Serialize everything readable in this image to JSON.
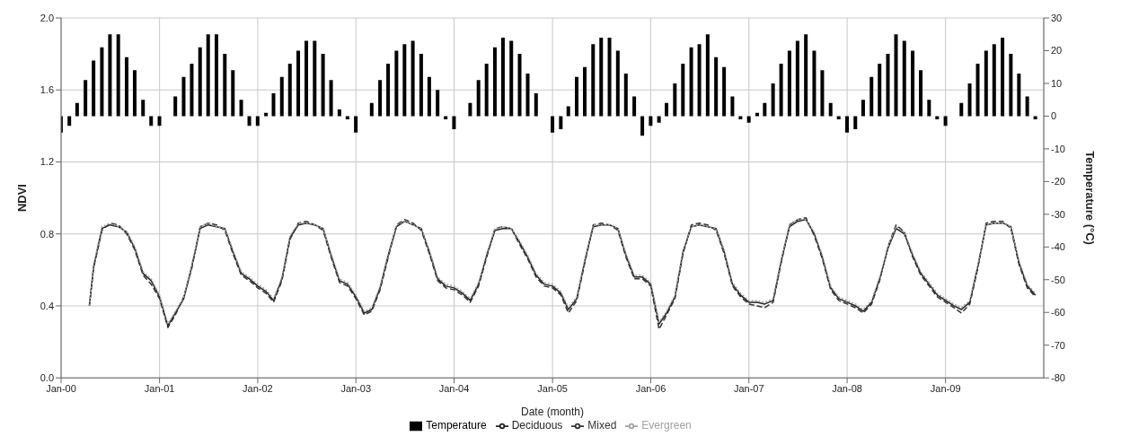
{
  "chart_data": {
    "type": "line",
    "xlabel": "Date (month)",
    "ylabel": "NDVI",
    "y2label": "Temperature (°C)",
    "xlim": [
      "2000-01",
      "2010-01"
    ],
    "xticks": [
      {
        "value": "2000-01",
        "label": "Jan-00"
      },
      {
        "value": "2001-01",
        "label": "Jan-01"
      },
      {
        "value": "2002-01",
        "label": "Jan-02"
      },
      {
        "value": "2003-01",
        "label": "Jan-03"
      },
      {
        "value": "2004-01",
        "label": "Jan-04"
      },
      {
        "value": "2005-01",
        "label": "Jan-05"
      },
      {
        "value": "2006-01",
        "label": "Jan-06"
      },
      {
        "value": "2007-01",
        "label": "Jan-07"
      },
      {
        "value": "2008-01",
        "label": "Jan-08"
      },
      {
        "value": "2009-01",
        "label": "Jan-09"
      }
    ],
    "ylim": [
      0,
      2
    ],
    "yticks": [
      {
        "value": 0,
        "label": "0.0"
      },
      0.4,
      0.8,
      1.2,
      1.6,
      {
        "value": 2,
        "label": "2.0"
      }
    ],
    "y2lim": [
      -80,
      30
    ],
    "y2ticks": [
      -80,
      -70,
      -60,
      -50,
      -40,
      -30,
      -20,
      -10,
      0,
      10,
      20,
      30
    ],
    "grid": true,
    "legend": "bottom",
    "marker": "none",
    "series": [
      {
        "name": "Temperature",
        "type": "bar",
        "axis": "y2",
        "color": "#000000",
        "x": [
          "2000-01",
          "2000-02",
          "2000-03",
          "2000-04",
          "2000-05",
          "2000-06",
          "2000-07",
          "2000-08",
          "2000-09",
          "2000-10",
          "2000-11",
          "2000-12",
          "2001-01",
          "2001-02",
          "2001-03",
          "2001-04",
          "2001-05",
          "2001-06",
          "2001-07",
          "2001-08",
          "2001-09",
          "2001-10",
          "2001-11",
          "2001-12",
          "2002-01",
          "2002-02",
          "2002-03",
          "2002-04",
          "2002-05",
          "2002-06",
          "2002-07",
          "2002-08",
          "2002-09",
          "2002-10",
          "2002-11",
          "2002-12",
          "2003-01",
          "2003-02",
          "2003-03",
          "2003-04",
          "2003-05",
          "2003-06",
          "2003-07",
          "2003-08",
          "2003-09",
          "2003-10",
          "2003-11",
          "2003-12",
          "2004-01",
          "2004-02",
          "2004-03",
          "2004-04",
          "2004-05",
          "2004-06",
          "2004-07",
          "2004-08",
          "2004-09",
          "2004-10",
          "2004-11",
          "2004-12",
          "2005-01",
          "2005-02",
          "2005-03",
          "2005-04",
          "2005-05",
          "2005-06",
          "2005-07",
          "2005-08",
          "2005-09",
          "2005-10",
          "2005-11",
          "2005-12",
          "2006-01",
          "2006-02",
          "2006-03",
          "2006-04",
          "2006-05",
          "2006-06",
          "2006-07",
          "2006-08",
          "2006-09",
          "2006-10",
          "2006-11",
          "2006-12",
          "2007-01",
          "2007-02",
          "2007-03",
          "2007-04",
          "2007-05",
          "2007-06",
          "2007-07",
          "2007-08",
          "2007-09",
          "2007-10",
          "2007-11",
          "2007-12",
          "2008-01",
          "2008-02",
          "2008-03",
          "2008-04",
          "2008-05",
          "2008-06",
          "2008-07",
          "2008-08",
          "2008-09",
          "2008-10",
          "2008-11",
          "2008-12",
          "2009-01",
          "2009-02",
          "2009-03",
          "2009-04",
          "2009-05",
          "2009-06",
          "2009-07",
          "2009-08",
          "2009-09",
          "2009-10",
          "2009-11",
          "2009-12"
        ],
        "values": [
          -5,
          -3,
          4,
          11,
          17,
          21,
          25,
          25,
          18,
          14,
          5,
          -3,
          -3,
          0,
          6,
          12,
          16,
          21,
          25,
          25,
          19,
          14,
          5,
          -3,
          -3,
          1,
          7,
          12,
          16,
          20,
          23,
          23,
          19,
          11,
          2,
          -1,
          -5,
          0,
          4,
          11,
          16,
          20,
          22,
          23,
          19,
          12,
          8,
          -1,
          -4,
          0,
          4,
          11,
          16,
          21,
          24,
          23,
          19,
          13,
          7,
          0,
          -5,
          -4,
          3,
          12,
          15,
          22,
          24,
          24,
          20,
          13,
          6,
          -6,
          -3,
          -2,
          4,
          10,
          16,
          21,
          22,
          25,
          18,
          15,
          6,
          -1,
          -2,
          1,
          4,
          10,
          16,
          20,
          23,
          25,
          20,
          14,
          4,
          -1,
          -5,
          -4,
          5,
          12,
          16,
          19,
          25,
          23,
          20,
          14,
          5,
          -1,
          -3,
          0,
          4,
          10,
          16,
          20,
          22,
          24,
          19,
          13,
          6,
          -1
        ]
      },
      {
        "name": "Deciduous",
        "color": "#222222",
        "line_style": "solid",
        "x": [
          "2000-04-15",
          "2000-05",
          "2000-06",
          "2000-07",
          "2000-08",
          "2000-09",
          "2000-10",
          "2000-11",
          "2000-12",
          "2001-01",
          "2001-02",
          "2001-03",
          "2001-04",
          "2001-05",
          "2001-06",
          "2001-07",
          "2001-08",
          "2001-09",
          "2001-10",
          "2001-11",
          "2001-12",
          "2002-01",
          "2002-02",
          "2002-03",
          "2002-04",
          "2002-05",
          "2002-06",
          "2002-07",
          "2002-08",
          "2002-09",
          "2002-10",
          "2002-11",
          "2002-12",
          "2003-01",
          "2003-02",
          "2003-03",
          "2003-04",
          "2003-05",
          "2003-06",
          "2003-07",
          "2003-08",
          "2003-09",
          "2003-10",
          "2003-11",
          "2003-12",
          "2004-01",
          "2004-02",
          "2004-03",
          "2004-04",
          "2004-05",
          "2004-06",
          "2004-07",
          "2004-08",
          "2004-09",
          "2004-10",
          "2004-11",
          "2004-12",
          "2005-01",
          "2005-02",
          "2005-03",
          "2005-04",
          "2005-05",
          "2005-06",
          "2005-07",
          "2005-08",
          "2005-09",
          "2005-10",
          "2005-11",
          "2005-12",
          "2006-01",
          "2006-02",
          "2006-03",
          "2006-04",
          "2006-05",
          "2006-06",
          "2006-07",
          "2006-08",
          "2006-09",
          "2006-10",
          "2006-11",
          "2006-12",
          "2007-01",
          "2007-02",
          "2007-03",
          "2007-04",
          "2007-05",
          "2007-06",
          "2007-07",
          "2007-08",
          "2007-09",
          "2007-10",
          "2007-11",
          "2007-12",
          "2008-01",
          "2008-02",
          "2008-03",
          "2008-04",
          "2008-05",
          "2008-06",
          "2008-07",
          "2008-08",
          "2008-09",
          "2008-10",
          "2008-11",
          "2008-12",
          "2009-01",
          "2009-02",
          "2009-03",
          "2009-04",
          "2009-05",
          "2009-06",
          "2009-07",
          "2009-08",
          "2009-09",
          "2009-10",
          "2009-11",
          "2009-12"
        ],
        "values": [
          0.4,
          0.62,
          0.83,
          0.85,
          0.84,
          0.81,
          0.72,
          0.58,
          0.54,
          0.45,
          0.29,
          0.36,
          0.44,
          0.62,
          0.83,
          0.85,
          0.84,
          0.83,
          0.7,
          0.58,
          0.55,
          0.51,
          0.48,
          0.43,
          0.55,
          0.78,
          0.85,
          0.86,
          0.85,
          0.83,
          0.68,
          0.54,
          0.52,
          0.45,
          0.36,
          0.38,
          0.5,
          0.68,
          0.84,
          0.87,
          0.85,
          0.83,
          0.7,
          0.55,
          0.51,
          0.5,
          0.47,
          0.43,
          0.52,
          0.68,
          0.82,
          0.83,
          0.83,
          0.75,
          0.67,
          0.57,
          0.52,
          0.51,
          0.47,
          0.38,
          0.44,
          0.65,
          0.84,
          0.85,
          0.85,
          0.83,
          0.68,
          0.56,
          0.56,
          0.52,
          0.3,
          0.36,
          0.45,
          0.7,
          0.84,
          0.85,
          0.84,
          0.83,
          0.7,
          0.52,
          0.46,
          0.42,
          0.42,
          0.41,
          0.43,
          0.65,
          0.84,
          0.87,
          0.88,
          0.8,
          0.67,
          0.5,
          0.44,
          0.42,
          0.4,
          0.37,
          0.42,
          0.55,
          0.72,
          0.83,
          0.8,
          0.68,
          0.58,
          0.52,
          0.46,
          0.43,
          0.4,
          0.38,
          0.42,
          0.62,
          0.85,
          0.86,
          0.86,
          0.84,
          0.64,
          0.51,
          0.46
        ]
      },
      {
        "name": "Mixed",
        "color": "#333333",
        "line_style": "dashed",
        "x": [
          "2000-04-15",
          "2000-05",
          "2000-06",
          "2000-07",
          "2000-08",
          "2000-09",
          "2000-10",
          "2000-11",
          "2000-12",
          "2001-01",
          "2001-02",
          "2001-03",
          "2001-04",
          "2001-05",
          "2001-06",
          "2001-07",
          "2001-08",
          "2001-09",
          "2001-10",
          "2001-11",
          "2001-12",
          "2002-01",
          "2002-02",
          "2002-03",
          "2002-04",
          "2002-05",
          "2002-06",
          "2002-07",
          "2002-08",
          "2002-09",
          "2002-10",
          "2002-11",
          "2002-12",
          "2003-01",
          "2003-02",
          "2003-03",
          "2003-04",
          "2003-05",
          "2003-06",
          "2003-07",
          "2003-08",
          "2003-09",
          "2003-10",
          "2003-11",
          "2003-12",
          "2004-01",
          "2004-02",
          "2004-03",
          "2004-04",
          "2004-05",
          "2004-06",
          "2004-07",
          "2004-08",
          "2004-09",
          "2004-10",
          "2004-11",
          "2004-12",
          "2005-01",
          "2005-02",
          "2005-03",
          "2005-04",
          "2005-05",
          "2005-06",
          "2005-07",
          "2005-08",
          "2005-09",
          "2005-10",
          "2005-11",
          "2005-12",
          "2006-01",
          "2006-02",
          "2006-03",
          "2006-04",
          "2006-05",
          "2006-06",
          "2006-07",
          "2006-08",
          "2006-09",
          "2006-10",
          "2006-11",
          "2006-12",
          "2007-01",
          "2007-02",
          "2007-03",
          "2007-04",
          "2007-05",
          "2007-06",
          "2007-07",
          "2007-08",
          "2007-09",
          "2007-10",
          "2007-11",
          "2007-12",
          "2008-01",
          "2008-02",
          "2008-03",
          "2008-04",
          "2008-05",
          "2008-06",
          "2008-07",
          "2008-08",
          "2008-09",
          "2008-10",
          "2008-11",
          "2008-12",
          "2009-01",
          "2009-02",
          "2009-03",
          "2009-04",
          "2009-05",
          "2009-06",
          "2009-07",
          "2009-08",
          "2009-09",
          "2009-10",
          "2009-11",
          "2009-12"
        ],
        "values": [
          0.4,
          0.61,
          0.82,
          0.86,
          0.85,
          0.8,
          0.71,
          0.57,
          0.52,
          0.44,
          0.28,
          0.35,
          0.45,
          0.61,
          0.84,
          0.86,
          0.85,
          0.82,
          0.69,
          0.57,
          0.54,
          0.5,
          0.47,
          0.42,
          0.54,
          0.77,
          0.86,
          0.87,
          0.85,
          0.82,
          0.67,
          0.53,
          0.51,
          0.44,
          0.35,
          0.37,
          0.49,
          0.67,
          0.85,
          0.88,
          0.86,
          0.82,
          0.69,
          0.54,
          0.5,
          0.49,
          0.46,
          0.42,
          0.51,
          0.67,
          0.83,
          0.84,
          0.83,
          0.74,
          0.66,
          0.56,
          0.51,
          0.5,
          0.46,
          0.36,
          0.43,
          0.64,
          0.85,
          0.86,
          0.85,
          0.82,
          0.67,
          0.55,
          0.55,
          0.51,
          0.27,
          0.35,
          0.44,
          0.69,
          0.85,
          0.86,
          0.85,
          0.82,
          0.69,
          0.51,
          0.45,
          0.41,
          0.4,
          0.39,
          0.42,
          0.64,
          0.85,
          0.88,
          0.89,
          0.79,
          0.66,
          0.49,
          0.43,
          0.41,
          0.39,
          0.36,
          0.41,
          0.54,
          0.73,
          0.85,
          0.81,
          0.67,
          0.57,
          0.51,
          0.45,
          0.42,
          0.39,
          0.36,
          0.41,
          0.61,
          0.86,
          0.87,
          0.87,
          0.83,
          0.63,
          0.5,
          0.45
        ]
      },
      {
        "name": "Evergreen",
        "color": "#a0a0a0",
        "line_style": "dotted",
        "x": [
          "2000-04-15",
          "2000-05",
          "2000-06",
          "2000-07",
          "2000-08",
          "2000-09",
          "2000-10",
          "2000-11",
          "2000-12",
          "2001-01",
          "2001-02",
          "2001-03",
          "2001-04",
          "2001-05",
          "2001-06",
          "2001-07",
          "2001-08",
          "2001-09",
          "2001-10",
          "2001-11",
          "2001-12",
          "2002-01",
          "2002-02",
          "2002-03",
          "2002-04",
          "2002-05",
          "2002-06",
          "2002-07",
          "2002-08",
          "2002-09",
          "2002-10",
          "2002-11",
          "2002-12",
          "2003-01",
          "2003-02",
          "2003-03",
          "2003-04",
          "2003-05",
          "2003-06",
          "2003-07",
          "2003-08",
          "2003-09",
          "2003-10",
          "2003-11",
          "2003-12",
          "2004-01",
          "2004-02",
          "2004-03",
          "2004-04",
          "2004-05",
          "2004-06",
          "2004-07",
          "2004-08",
          "2004-09",
          "2004-10",
          "2004-11",
          "2004-12",
          "2005-01",
          "2005-02",
          "2005-03",
          "2005-04",
          "2005-05",
          "2005-06",
          "2005-07",
          "2005-08",
          "2005-09",
          "2005-10",
          "2005-11",
          "2005-12",
          "2006-01",
          "2006-02",
          "2006-03",
          "2006-04",
          "2006-05",
          "2006-06",
          "2006-07",
          "2006-08",
          "2006-09",
          "2006-10",
          "2006-11",
          "2006-12",
          "2007-01",
          "2007-02",
          "2007-03",
          "2007-04",
          "2007-05",
          "2007-06",
          "2007-07",
          "2007-08",
          "2007-09",
          "2007-10",
          "2007-11",
          "2007-12",
          "2008-01",
          "2008-02",
          "2008-03",
          "2008-04",
          "2008-05",
          "2008-06",
          "2008-07",
          "2008-08",
          "2008-09",
          "2008-10",
          "2008-11",
          "2008-12",
          "2009-01",
          "2009-02",
          "2009-03",
          "2009-04",
          "2009-05",
          "2009-06",
          "2009-07",
          "2009-08",
          "2009-09",
          "2009-10",
          "2009-11",
          "2009-12"
        ],
        "values": [
          0.4,
          0.63,
          0.84,
          0.86,
          0.84,
          0.81,
          0.73,
          0.59,
          0.55,
          0.46,
          0.3,
          0.37,
          0.45,
          0.63,
          0.84,
          0.86,
          0.84,
          0.83,
          0.71,
          0.59,
          0.56,
          0.52,
          0.49,
          0.44,
          0.56,
          0.79,
          0.86,
          0.86,
          0.85,
          0.83,
          0.69,
          0.55,
          0.53,
          0.46,
          0.37,
          0.39,
          0.51,
          0.69,
          0.85,
          0.87,
          0.85,
          0.83,
          0.71,
          0.56,
          0.52,
          0.51,
          0.48,
          0.44,
          0.53,
          0.69,
          0.83,
          0.84,
          0.83,
          0.76,
          0.68,
          0.58,
          0.53,
          0.52,
          0.48,
          0.39,
          0.45,
          0.66,
          0.85,
          0.85,
          0.85,
          0.83,
          0.69,
          0.57,
          0.57,
          0.53,
          0.31,
          0.37,
          0.46,
          0.71,
          0.84,
          0.85,
          0.84,
          0.83,
          0.71,
          0.53,
          0.47,
          0.43,
          0.43,
          0.42,
          0.44,
          0.66,
          0.85,
          0.88,
          0.88,
          0.81,
          0.68,
          0.51,
          0.45,
          0.43,
          0.41,
          0.38,
          0.43,
          0.56,
          0.73,
          0.84,
          0.81,
          0.69,
          0.59,
          0.53,
          0.47,
          0.44,
          0.41,
          0.39,
          0.43,
          0.63,
          0.85,
          0.86,
          0.86,
          0.84,
          0.65,
          0.52,
          0.47
        ]
      }
    ]
  }
}
